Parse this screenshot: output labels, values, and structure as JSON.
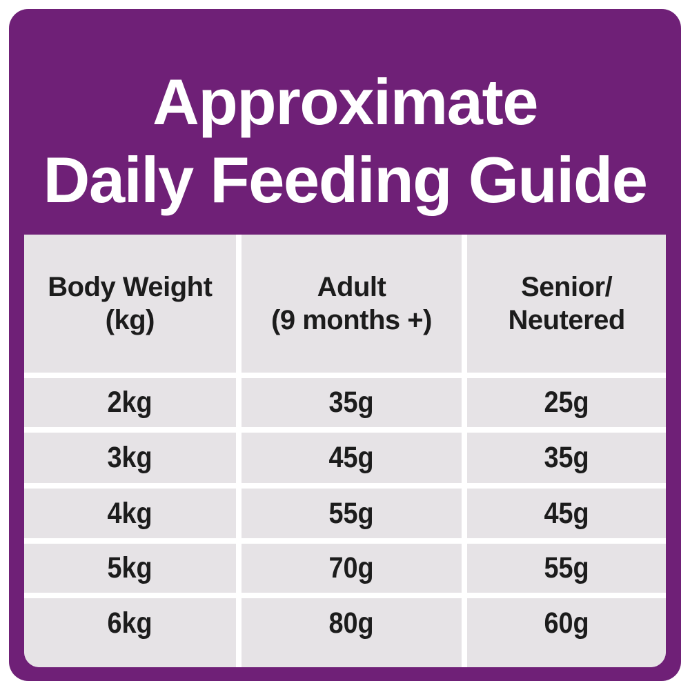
{
  "header": {
    "title_line1": "Approximate",
    "title_line2": "Daily Feeding Guide"
  },
  "table": {
    "columns": [
      {
        "line1": "Body Weight",
        "line2": "(kg)"
      },
      {
        "line1": "Adult",
        "line2": "(9 months +)"
      },
      {
        "line1": "Senior/",
        "line2": "Neutered"
      }
    ]
  },
  "chart_data": {
    "type": "table",
    "title": "Approximate Daily Feeding Guide",
    "columns": [
      "Body Weight (kg)",
      "Adult (9 months +)",
      "Senior/Neutered"
    ],
    "rows": [
      [
        "2kg",
        "35g",
        "25g"
      ],
      [
        "3kg",
        "45g",
        "35g"
      ],
      [
        "4kg",
        "55g",
        "45g"
      ],
      [
        "5kg",
        "70g",
        "55g"
      ],
      [
        "6kg",
        "80g",
        "60g"
      ]
    ]
  },
  "colors": {
    "purple": "#6F2077",
    "cell_gray": "#E6E3E6",
    "text_dark": "#1C1C1C",
    "background": "#FFFFFF"
  }
}
